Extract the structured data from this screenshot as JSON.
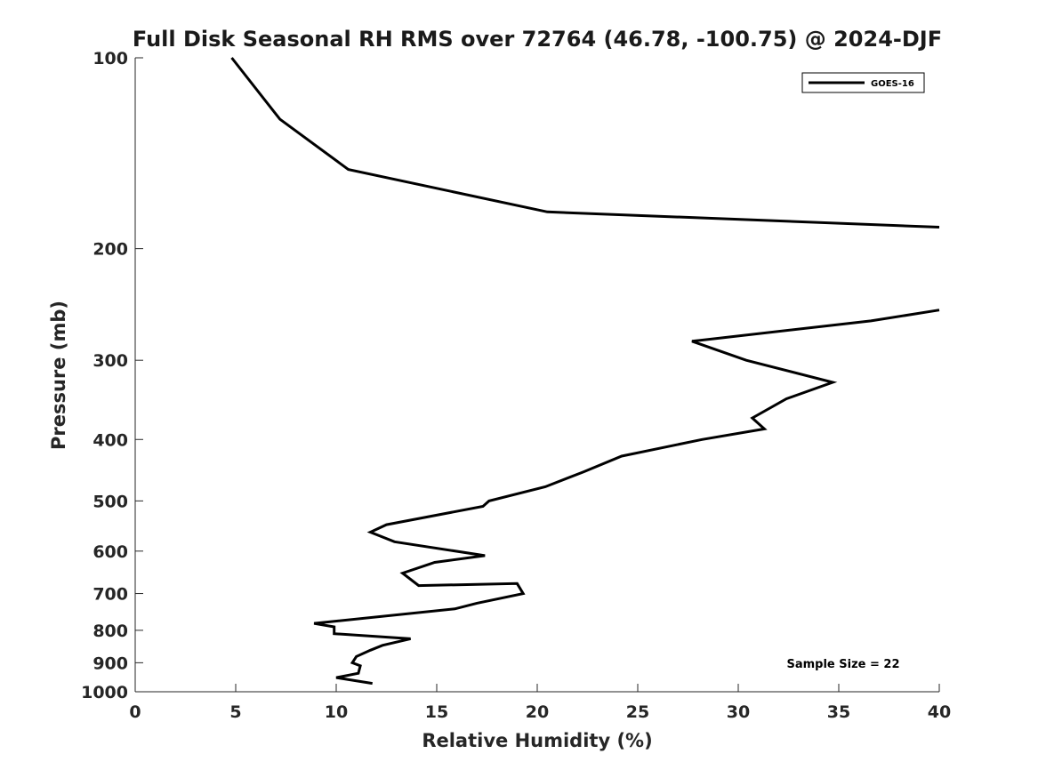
{
  "chart_data": {
    "type": "line",
    "title": "Full Disk Seasonal RH RMS over 72764 (46.78, -100.75) @ 2024-DJF",
    "xlabel": "Relative Humidity (%)",
    "ylabel": "Pressure (mb)",
    "xlim": [
      0,
      40
    ],
    "ylim": [
      100,
      1000
    ],
    "y_scale": "log",
    "y_reversed": true,
    "x_ticks": [
      0,
      5,
      10,
      15,
      20,
      25,
      30,
      35,
      40
    ],
    "x_tick_labels": [
      "0",
      "5",
      "10",
      "15",
      "20",
      "25",
      "30",
      "35",
      "40"
    ],
    "y_ticks": [
      100,
      200,
      300,
      400,
      500,
      600,
      700,
      800,
      900,
      1000
    ],
    "y_tick_labels": [
      "100",
      "200",
      "300",
      "400",
      "500",
      "600",
      "700",
      "800",
      "900",
      "1000"
    ],
    "grid": false,
    "legend_position": "top-right",
    "annotation": "Sample Size = 22",
    "series": [
      {
        "name": "GOES-16",
        "color": "#000000",
        "segments": [
          [
            [
              4.8,
              100
            ],
            [
              7.2,
              125
            ],
            [
              10.6,
              150
            ],
            [
              20.5,
              175
            ],
            [
              40,
              185
            ]
          ],
          [
            [
              40,
              250
            ],
            [
              36.6,
              260
            ],
            [
              27.7,
              280
            ],
            [
              30.4,
              300
            ],
            [
              34.7,
              325
            ],
            [
              32.4,
              345
            ],
            [
              30.7,
              370
            ],
            [
              31.3,
              385
            ],
            [
              28.2,
              400
            ],
            [
              24.2,
              425
            ],
            [
              22.3,
              450
            ],
            [
              20.4,
              475
            ],
            [
              17.6,
              500
            ],
            [
              17.3,
              510
            ],
            [
              12.5,
              545
            ],
            [
              11.7,
              560
            ],
            [
              12.9,
              580
            ],
            [
              17.4,
              610
            ],
            [
              14.9,
              625
            ],
            [
              13.3,
              650
            ],
            [
              14.1,
              680
            ],
            [
              19.0,
              675
            ],
            [
              19.3,
              700
            ],
            [
              17.0,
              725
            ],
            [
              15.9,
              740
            ],
            [
              8.9,
              780
            ],
            [
              9.9,
              790
            ],
            [
              9.9,
              810
            ],
            [
              13.7,
              825
            ],
            [
              12.3,
              845
            ],
            [
              11.7,
              860
            ],
            [
              11.0,
              880
            ],
            [
              10.8,
              900
            ],
            [
              11.2,
              910
            ],
            [
              11.1,
              935
            ],
            [
              10.0,
              950
            ],
            [
              11.8,
              970
            ]
          ]
        ]
      }
    ]
  }
}
